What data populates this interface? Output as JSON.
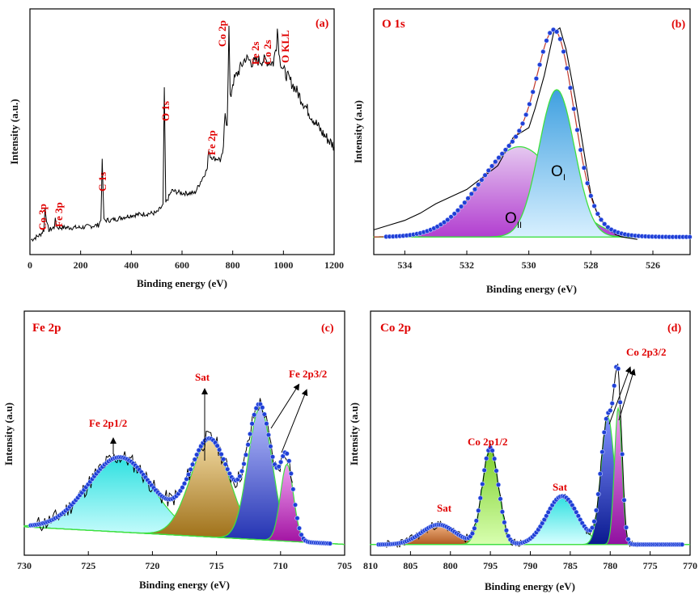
{
  "colors": {
    "label_red": "#e00000",
    "fit_blue": "#1f3fd6",
    "envelope_red": "#c0392b",
    "oi_fill": "#3fa0e0",
    "oii_fill": "#b23ed0",
    "fe_p12_fill": "#2ee0e0",
    "fe_sat_fill": "#c89a2a",
    "fe_p32a_fill": "#3a4fd8",
    "fe_p32b_fill": "#d02ad0",
    "co_sat1_fill": "#d08040",
    "co_p12_fill": "#7ccf2a",
    "co_sat2_fill": "#2ee0e0",
    "co_p32a_fill": "#1f3fd6",
    "co_p32b_fill": "#c02ac8"
  },
  "chart_data": [
    {
      "panel": "(a)",
      "type": "line",
      "xlabel": "Binding energy (eV)",
      "ylabel": "Intensity (a.u.)",
      "xlim": [
        0,
        1200
      ],
      "xticks": [
        "0",
        "200",
        "400",
        "600",
        "800",
        "1000",
        "1200"
      ],
      "series": [
        {
          "x": [
            5,
            40,
            55,
            60,
            68,
            75,
            95,
            100,
            108,
            120,
            200,
            270,
            280,
            285,
            292,
            320,
            400,
            500,
            525,
            530,
            536,
            560,
            600,
            650,
            700,
            705,
            712,
            730,
            760,
            770,
            778,
            785,
            790,
            800,
            840,
            850,
            880,
            900,
            930,
            960,
            972,
            976,
            985,
            1000,
            1050,
            1100,
            1150,
            1200
          ],
          "y": [
            6,
            8,
            10,
            19,
            12,
            10,
            11,
            14,
            11,
            11,
            11,
            12,
            14,
            38,
            14,
            14,
            16,
            17,
            20,
            68,
            21,
            26,
            25,
            25,
            35,
            43,
            40,
            39,
            39,
            56,
            54,
            92,
            63,
            70,
            78,
            80,
            78,
            79,
            79,
            78,
            85,
            92,
            80,
            75,
            67,
            58,
            50,
            44
          ]
        }
      ],
      "annotations": [
        "Co 3p",
        "Fe 3p",
        "C 1s",
        "O 1s",
        "Fe 2p",
        "Co 2p",
        "Fe 2s",
        "Co 2s",
        "O KLL"
      ]
    },
    {
      "panel": "(b)",
      "type": "line",
      "title": "O 1s",
      "xlabel": "Binding energy (eV)",
      "ylabel": "Intensity (a.u)",
      "xlim": [
        535,
        524.8
      ],
      "xticks": [
        "534",
        "532",
        "530",
        "528",
        "526"
      ],
      "peaks": [
        {
          "label": "O_I",
          "center": 529.1,
          "height": 62,
          "fwhm": 1.35
        },
        {
          "label": "O_II",
          "center": 530.3,
          "height": 38,
          "fwhm": 3.0
        }
      ],
      "raw_data": {
        "x": [
          535,
          534.5,
          534,
          533.5,
          533,
          532.5,
          532,
          531.5,
          531,
          530.5,
          530,
          529.8,
          529.5,
          529.2,
          529,
          528.8,
          528.5,
          528,
          527.8,
          527.5,
          527.2,
          527,
          526.5
        ],
        "y": [
          7,
          9,
          11,
          14,
          18,
          21,
          24,
          29,
          34,
          46,
          50,
          58,
          72,
          90,
          92,
          83,
          62,
          22,
          14,
          8,
          5,
          4,
          3
        ]
      },
      "labels": [
        "O",
        "I",
        "O",
        "II"
      ]
    },
    {
      "panel": "(c)",
      "type": "line",
      "title": "Fe 2p",
      "xlabel": "Binding energy (eV)",
      "ylabel": "Intensity (a.u)",
      "xlim": [
        730,
        705
      ],
      "xticks": [
        "730",
        "725",
        "720",
        "715",
        "710",
        "705"
      ],
      "peaks": [
        {
          "label": "Fe 2p1/2",
          "center": 722.5,
          "height": 34,
          "fwhm": 6.0
        },
        {
          "label": "Sat",
          "center": 715.5,
          "height": 44,
          "fwhm": 3.6
        },
        {
          "label": "Fe 2p3/2",
          "center": 711.6,
          "height": 60,
          "fwhm": 2.2
        },
        {
          "label": "Fe 2p3/2",
          "center": 709.5,
          "height": 35,
          "fwhm": 1.2
        }
      ],
      "labels": [
        "Fe 2p1/2",
        "Sat",
        "Fe 2p3/2"
      ]
    },
    {
      "panel": "(d)",
      "type": "line",
      "title": "Co 2p",
      "xlabel": "Binding energy (eV)",
      "ylabel": "Intensity (a.u)",
      "xlim": [
        810,
        770
      ],
      "xticks": [
        "810",
        "805",
        "800",
        "795",
        "790",
        "785",
        "780",
        "775",
        "770"
      ],
      "peaks": [
        {
          "label": "Sat",
          "center": 801.5,
          "height": 9,
          "fwhm": 5.0
        },
        {
          "label": "Co 2p1/2",
          "center": 795.0,
          "height": 44,
          "fwhm": 2.4
        },
        {
          "label": "Sat",
          "center": 786.0,
          "height": 22,
          "fwhm": 4.6
        },
        {
          "label": "Co 2p3/2",
          "center": 780.3,
          "height": 58,
          "fwhm": 2.0
        },
        {
          "label": "Co 2p3/2",
          "center": 779.0,
          "height": 62,
          "fwhm": 1.1
        }
      ],
      "labels": [
        "Sat",
        "Co 2p1/2",
        "Sat",
        "Co 2p3/2"
      ]
    }
  ]
}
